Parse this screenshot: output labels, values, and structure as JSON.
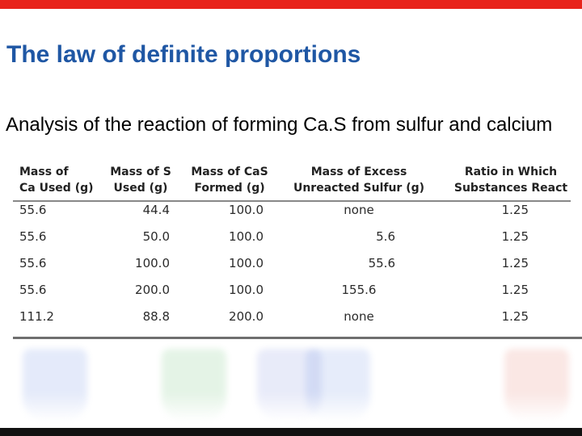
{
  "slide": {
    "title": "The law of definite proportions",
    "subtitle": "Analysis of the reaction of forming Ca.S from sulfur and calcium"
  },
  "table": {
    "headers": [
      [
        "Mass of",
        "Ca Used (g)"
      ],
      [
        "Mass of S",
        "Used (g)"
      ],
      [
        "Mass of CaS",
        "Formed (g)"
      ],
      [
        "Mass of Excess",
        "Unreacted Sulfur (g)"
      ],
      [
        "Ratio in Which",
        "Substances React"
      ]
    ],
    "rows": [
      [
        "55.6",
        "44.4",
        "100.0",
        "none",
        "1.25"
      ],
      [
        "55.6",
        "50.0",
        "100.0",
        "5.6",
        "1.25"
      ],
      [
        "55.6",
        "100.0",
        "100.0",
        "55.6",
        "1.25"
      ],
      [
        "55.6",
        "200.0",
        "100.0",
        "155.6",
        "1.25"
      ],
      [
        "111.2",
        "88.8",
        "200.0",
        "none",
        "1.25"
      ]
    ]
  },
  "colors": {
    "top_bar": "#e8231b",
    "bottom_bar": "#111111",
    "title": "#1f57a4",
    "beakers": [
      "#2a5bd7",
      "#2aa53a",
      "#4a5fd0",
      "#3a6ad8",
      "#d8402a"
    ]
  }
}
